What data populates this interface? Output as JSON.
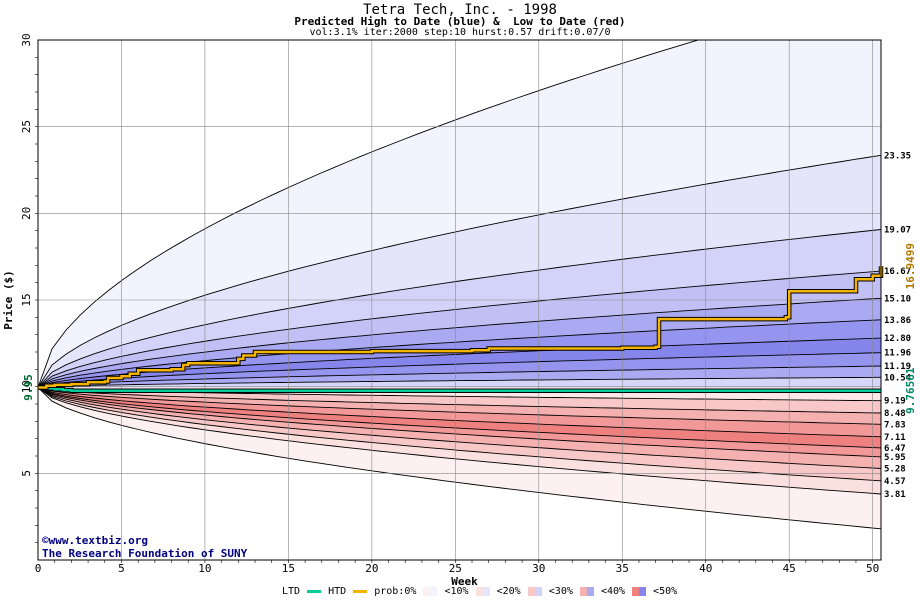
{
  "header": {
    "title": "Tetra Tech, Inc. - 1998",
    "subtitle": "Predicted High to Date (blue) &  Low to Date (red)",
    "params": "vol:3.1% iter:2000 step:10 hurst:0.57 drift:0.07/0"
  },
  "credit": {
    "line1": "www.textbiz.org",
    "line2": "The Research Foundation of SUNY"
  },
  "chart_data": {
    "type": "area",
    "xlabel": "Week",
    "ylabel": "Price ($)",
    "xlim": [
      0,
      50.5
    ],
    "ylim": [
      0,
      30
    ],
    "x_ticks": [
      0,
      5,
      10,
      15,
      20,
      25,
      30,
      35,
      40,
      45,
      50
    ],
    "y_ticks": [
      5,
      10,
      15,
      20,
      25,
      30
    ],
    "grid": true,
    "start_price": 9.95,
    "start_label": "9.95",
    "right_labels": [
      {
        "text": "23.35",
        "value": 23.35
      },
      {
        "text": "19.07",
        "value": 19.07
      },
      {
        "text": "16.67",
        "value": 16.67
      },
      {
        "text": "15.10",
        "value": 15.1
      },
      {
        "text": "13.86",
        "value": 13.86
      },
      {
        "text": "12.80",
        "value": 12.8
      },
      {
        "text": "11.96",
        "value": 11.96
      },
      {
        "text": "11.19",
        "value": 11.19
      },
      {
        "text": "10.54",
        "value": 10.54
      },
      {
        "text": "9.19",
        "value": 9.19
      },
      {
        "text": "8.48",
        "value": 8.48
      },
      {
        "text": "7.83",
        "value": 7.83
      },
      {
        "text": "7.11",
        "value": 7.11
      },
      {
        "text": "6.47",
        "value": 6.47
      },
      {
        "text": "5.95",
        "value": 5.95
      },
      {
        "text": "5.28",
        "value": 5.28
      },
      {
        "text": "4.57",
        "value": 4.57
      },
      {
        "text": "3.81",
        "value": 3.81
      }
    ],
    "high_bands": [
      {
        "end": 33.0,
        "fill": "#f3f3fd"
      },
      {
        "end": 23.35,
        "fill": "#e4e4fb"
      },
      {
        "end": 19.07,
        "fill": "#d3d3f9"
      },
      {
        "end": 16.67,
        "fill": "#c0c0f5"
      },
      {
        "end": 15.1,
        "fill": "#aaaaf2"
      },
      {
        "end": 13.86,
        "fill": "#9595ef"
      },
      {
        "end": 12.8,
        "fill": "#8585ec"
      },
      {
        "end": 11.96,
        "fill": "#9595ef"
      },
      {
        "end": 11.19,
        "fill": "#aaaaf2"
      },
      {
        "end": 10.54,
        "fill": "#c0c0f5"
      }
    ],
    "low_bands": [
      {
        "end": 1.8,
        "fill": "#fdf0f0"
      },
      {
        "end": 3.81,
        "fill": "#fbe0e0"
      },
      {
        "end": 4.57,
        "fill": "#f8c8c8"
      },
      {
        "end": 5.28,
        "fill": "#f5b0b0"
      },
      {
        "end": 5.95,
        "fill": "#f29898"
      },
      {
        "end": 6.47,
        "fill": "#ef8080"
      },
      {
        "end": 7.11,
        "fill": "#f29898"
      },
      {
        "end": 7.83,
        "fill": "#f5b0b0"
      },
      {
        "end": 8.48,
        "fill": "#f8c8c8"
      },
      {
        "end": 9.19,
        "fill": "#fbe0e0"
      }
    ],
    "htd_series": {
      "x": [
        0,
        0.5,
        1,
        2,
        3,
        4,
        4.2,
        5,
        5.5,
        6,
        8,
        8.7,
        9,
        11,
        12,
        12.3,
        13,
        20,
        26,
        27,
        30,
        35,
        37,
        37.2,
        41,
        44.8,
        45,
        47,
        48.5,
        49,
        50,
        50.5
      ],
      "y": [
        9.95,
        10.05,
        10.1,
        10.15,
        10.25,
        10.3,
        10.5,
        10.6,
        10.75,
        10.95,
        11.0,
        11.25,
        11.35,
        11.35,
        11.6,
        11.8,
        12.0,
        12.05,
        12.1,
        12.2,
        12.2,
        12.25,
        12.3,
        13.9,
        13.9,
        14.0,
        15.5,
        15.5,
        15.5,
        16.2,
        16.4,
        16.95
      ],
      "color": "#f4b400",
      "end_label": "16.9499"
    },
    "ltd_series": {
      "x": [
        0,
        0.5,
        1,
        1.5,
        2,
        50.5
      ],
      "y": [
        9.95,
        9.9,
        9.85,
        9.8,
        9.77,
        9.77
      ],
      "color": "#00cc99",
      "end_label": "9.76561"
    },
    "legend": {
      "ltd": "LTD",
      "htd": "HTD",
      "prob": "prob:0%",
      "items": [
        "<10%",
        "<20%",
        "<30%",
        "<40%",
        "<50%"
      ],
      "colors": {
        "ltd": "#00cc99",
        "htd": "#f4b400",
        "b0": [
          "#fdf0f0",
          "#f3f3fd"
        ],
        "b1": [
          "#fbe0e0",
          "#e4e4fb"
        ],
        "b2": [
          "#f8c8c8",
          "#d3d3f9"
        ],
        "b3": [
          "#f5b0b0",
          "#aaaaf2"
        ],
        "b4": [
          "#f29898",
          "#9595ef"
        ],
        "b5": [
          "#ef8080",
          "#8585ec"
        ]
      }
    }
  }
}
